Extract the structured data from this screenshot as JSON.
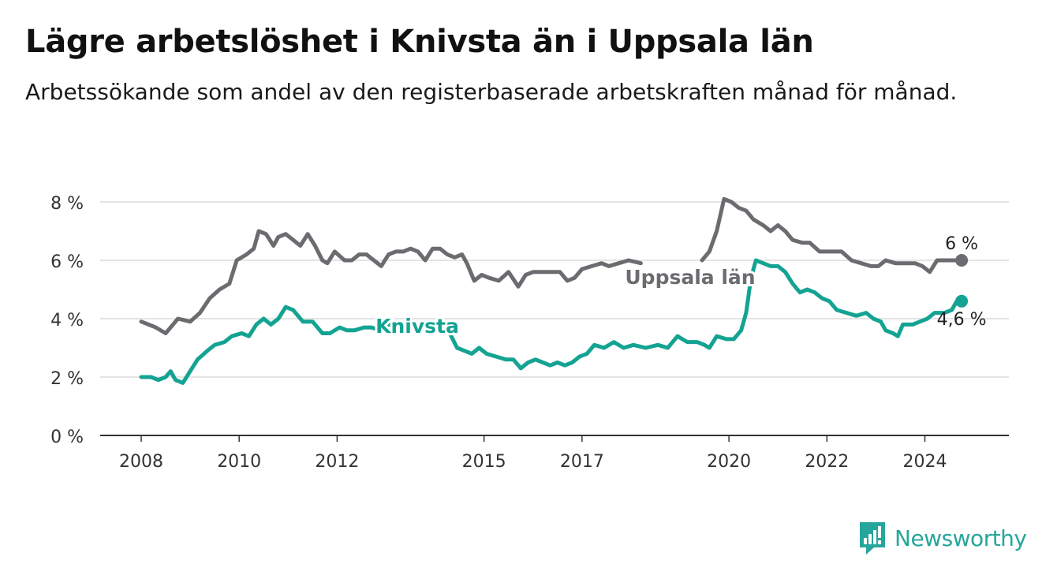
{
  "title": "Lägre arbetslöshet i Knivsta än i Uppsala län",
  "subtitle": "Arbetssökande som andel av den registerbaserade arbetskraften månad för månad.",
  "brand": "Newsworthy",
  "colors": {
    "uppsala": "#6b6b70",
    "knivsta": "#14a392",
    "grid": "#dcdcdc",
    "axis": "#333333"
  },
  "chart_data": {
    "type": "line",
    "title": "Lägre arbetslöshet i Knivsta än i Uppsala län",
    "subtitle": "Arbetssökande som andel av den registerbaserade arbetskraften månad för månad.",
    "xlabel": "",
    "ylabel": "",
    "x_ticks": [
      "2008",
      "2010",
      "2012",
      "2015",
      "2017",
      "2020",
      "2022",
      "2024"
    ],
    "y_ticks": [
      "0 %",
      "2 %",
      "4 %",
      "6 %",
      "8 %"
    ],
    "ylim": [
      0,
      8.5
    ],
    "xlim": [
      2007.2,
      2025.7
    ],
    "grid": true,
    "series": [
      {
        "name": "Uppsala län",
        "color": "#6b6b70",
        "end_label": "6 %",
        "points": [
          [
            2008.0,
            3.9
          ],
          [
            2008.3,
            3.7
          ],
          [
            2008.5,
            3.5
          ],
          [
            2008.75,
            4.0
          ],
          [
            2009.0,
            3.9
          ],
          [
            2009.2,
            4.2
          ],
          [
            2009.4,
            4.7
          ],
          [
            2009.6,
            5.0
          ],
          [
            2009.8,
            5.2
          ],
          [
            2009.95,
            6.0
          ],
          [
            2010.15,
            6.2
          ],
          [
            2010.3,
            6.4
          ],
          [
            2010.4,
            7.0
          ],
          [
            2010.55,
            6.9
          ],
          [
            2010.7,
            6.5
          ],
          [
            2010.8,
            6.8
          ],
          [
            2010.95,
            6.9
          ],
          [
            2011.1,
            6.7
          ],
          [
            2011.25,
            6.5
          ],
          [
            2011.4,
            6.9
          ],
          [
            2011.55,
            6.5
          ],
          [
            2011.7,
            6.0
          ],
          [
            2011.8,
            5.9
          ],
          [
            2011.95,
            6.3
          ],
          [
            2012.15,
            6.0
          ],
          [
            2012.3,
            6.0
          ],
          [
            2012.45,
            6.2
          ],
          [
            2012.6,
            6.2
          ],
          [
            2012.75,
            6.0
          ],
          [
            2012.9,
            5.8
          ],
          [
            2013.05,
            6.2
          ],
          [
            2013.2,
            6.3
          ],
          [
            2013.35,
            6.3
          ],
          [
            2013.5,
            6.4
          ],
          [
            2013.65,
            6.3
          ],
          [
            2013.8,
            6.0
          ],
          [
            2013.95,
            6.4
          ],
          [
            2014.1,
            6.4
          ],
          [
            2014.25,
            6.2
          ],
          [
            2014.4,
            6.1
          ],
          [
            2014.55,
            6.2
          ],
          [
            2014.65,
            5.9
          ],
          [
            2014.8,
            5.3
          ],
          [
            2014.95,
            5.5
          ],
          [
            2015.1,
            5.4
          ],
          [
            2015.3,
            5.3
          ],
          [
            2015.5,
            5.6
          ],
          [
            2015.7,
            5.1
          ],
          [
            2015.85,
            5.5
          ],
          [
            2016.0,
            5.6
          ],
          [
            2016.3,
            5.6
          ],
          [
            2016.55,
            5.6
          ],
          [
            2016.7,
            5.3
          ],
          [
            2016.85,
            5.4
          ],
          [
            2017.0,
            5.7
          ],
          [
            2017.2,
            5.8
          ],
          [
            2017.4,
            5.9
          ],
          [
            2017.55,
            5.8
          ],
          [
            2017.75,
            5.9
          ],
          [
            2017.95,
            6.0
          ],
          [
            2018.2,
            5.9
          ]
        ],
        "points_after_label": [
          [
            2019.45,
            6.0
          ],
          [
            2019.6,
            6.3
          ],
          [
            2019.75,
            7.0
          ],
          [
            2019.9,
            8.1
          ],
          [
            2020.05,
            8.0
          ],
          [
            2020.2,
            7.8
          ],
          [
            2020.35,
            7.7
          ],
          [
            2020.5,
            7.4
          ],
          [
            2020.7,
            7.2
          ],
          [
            2020.85,
            7.0
          ],
          [
            2021.0,
            7.2
          ],
          [
            2021.15,
            7.0
          ],
          [
            2021.3,
            6.7
          ],
          [
            2021.5,
            6.6
          ],
          [
            2021.65,
            6.6
          ],
          [
            2021.85,
            6.3
          ],
          [
            2022.05,
            6.3
          ],
          [
            2022.3,
            6.3
          ],
          [
            2022.5,
            6.0
          ],
          [
            2022.7,
            5.9
          ],
          [
            2022.9,
            5.8
          ],
          [
            2023.05,
            5.8
          ],
          [
            2023.2,
            6.0
          ],
          [
            2023.4,
            5.9
          ],
          [
            2023.6,
            5.9
          ],
          [
            2023.8,
            5.9
          ],
          [
            2023.95,
            5.8
          ],
          [
            2024.1,
            5.6
          ],
          [
            2024.25,
            6.0
          ],
          [
            2024.5,
            6.0
          ],
          [
            2024.75,
            6.0
          ]
        ],
        "last_value": 6.0
      },
      {
        "name": "Knivsta",
        "color": "#14a392",
        "end_label": "4,6 %",
        "points": [
          [
            2008.0,
            2.0
          ],
          [
            2008.2,
            2.0
          ],
          [
            2008.35,
            1.9
          ],
          [
            2008.5,
            2.0
          ],
          [
            2008.6,
            2.2
          ],
          [
            2008.7,
            1.9
          ],
          [
            2008.85,
            1.8
          ],
          [
            2009.0,
            2.2
          ],
          [
            2009.15,
            2.6
          ],
          [
            2009.35,
            2.9
          ],
          [
            2009.5,
            3.1
          ],
          [
            2009.7,
            3.2
          ],
          [
            2009.85,
            3.4
          ],
          [
            2010.05,
            3.5
          ],
          [
            2010.2,
            3.4
          ],
          [
            2010.35,
            3.8
          ],
          [
            2010.5,
            4.0
          ],
          [
            2010.65,
            3.8
          ],
          [
            2010.8,
            4.0
          ],
          [
            2010.95,
            4.4
          ],
          [
            2011.1,
            4.3
          ],
          [
            2011.3,
            3.9
          ],
          [
            2011.5,
            3.9
          ],
          [
            2011.7,
            3.5
          ],
          [
            2011.85,
            3.5
          ],
          [
            2012.05,
            3.7
          ],
          [
            2012.2,
            3.6
          ],
          [
            2012.35,
            3.6
          ],
          [
            2012.55,
            3.7
          ],
          [
            2012.7,
            3.7
          ],
          [
            2012.9,
            3.6
          ],
          [
            2013.05,
            3.8
          ],
          [
            2013.2,
            3.8
          ]
        ],
        "points_after_label": [
          [
            2014.3,
            3.5
          ],
          [
            2014.45,
            3.0
          ],
          [
            2014.6,
            2.9
          ],
          [
            2014.75,
            2.8
          ],
          [
            2014.9,
            3.0
          ],
          [
            2015.05,
            2.8
          ],
          [
            2015.25,
            2.7
          ],
          [
            2015.45,
            2.6
          ],
          [
            2015.6,
            2.6
          ],
          [
            2015.75,
            2.3
          ],
          [
            2015.9,
            2.5
          ],
          [
            2016.05,
            2.6
          ],
          [
            2016.2,
            2.5
          ],
          [
            2016.35,
            2.4
          ],
          [
            2016.5,
            2.5
          ],
          [
            2016.65,
            2.4
          ],
          [
            2016.8,
            2.5
          ],
          [
            2016.95,
            2.7
          ],
          [
            2017.1,
            2.8
          ],
          [
            2017.25,
            3.1
          ],
          [
            2017.45,
            3.0
          ],
          [
            2017.65,
            3.2
          ],
          [
            2017.85,
            3.0
          ],
          [
            2018.05,
            3.1
          ],
          [
            2018.3,
            3.0
          ],
          [
            2018.55,
            3.1
          ],
          [
            2018.75,
            3.0
          ],
          [
            2018.95,
            3.4
          ],
          [
            2019.15,
            3.2
          ],
          [
            2019.35,
            3.2
          ],
          [
            2019.5,
            3.1
          ],
          [
            2019.6,
            3.0
          ],
          [
            2019.75,
            3.4
          ],
          [
            2019.95,
            3.3
          ],
          [
            2020.1,
            3.3
          ],
          [
            2020.25,
            3.6
          ],
          [
            2020.35,
            4.2
          ],
          [
            2020.45,
            5.4
          ],
          [
            2020.55,
            6.0
          ],
          [
            2020.7,
            5.9
          ],
          [
            2020.85,
            5.8
          ],
          [
            2021.0,
            5.8
          ],
          [
            2021.15,
            5.6
          ],
          [
            2021.3,
            5.2
          ],
          [
            2021.45,
            4.9
          ],
          [
            2021.6,
            5.0
          ],
          [
            2021.75,
            4.9
          ],
          [
            2021.9,
            4.7
          ],
          [
            2022.05,
            4.6
          ],
          [
            2022.2,
            4.3
          ],
          [
            2022.4,
            4.2
          ],
          [
            2022.6,
            4.1
          ],
          [
            2022.8,
            4.2
          ],
          [
            2022.95,
            4.0
          ],
          [
            2023.1,
            3.9
          ],
          [
            2023.2,
            3.6
          ],
          [
            2023.35,
            3.5
          ],
          [
            2023.45,
            3.4
          ],
          [
            2023.55,
            3.8
          ],
          [
            2023.75,
            3.8
          ],
          [
            2023.9,
            3.9
          ],
          [
            2024.05,
            4.0
          ],
          [
            2024.2,
            4.2
          ],
          [
            2024.4,
            4.2
          ],
          [
            2024.55,
            4.3
          ],
          [
            2024.65,
            4.6
          ],
          [
            2024.75,
            4.6
          ]
        ],
        "last_value": 4.6
      }
    ],
    "line_labels": [
      {
        "series": "Uppsala län",
        "text": "Uppsala län"
      },
      {
        "series": "Knivsta",
        "text": "Knivsta"
      }
    ]
  }
}
